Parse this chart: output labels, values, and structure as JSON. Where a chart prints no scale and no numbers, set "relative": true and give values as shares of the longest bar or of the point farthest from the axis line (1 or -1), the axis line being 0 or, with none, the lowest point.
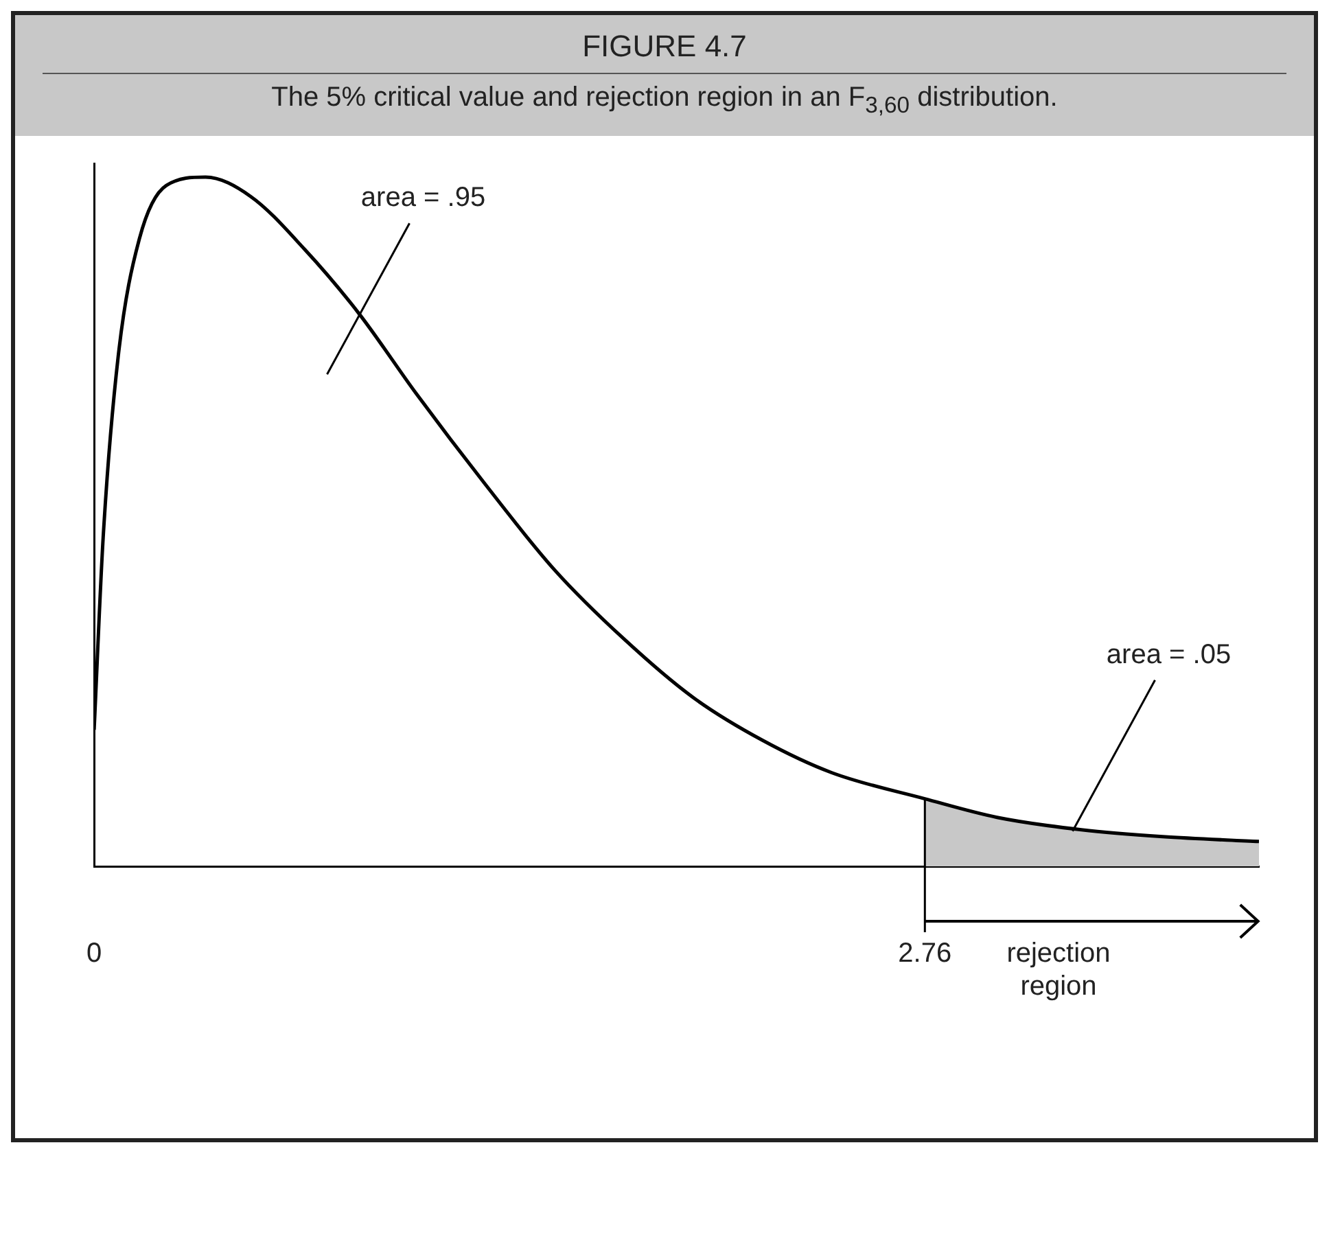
{
  "chart_data": {
    "type": "line",
    "title": "FIGURE 4.7",
    "subtitle": "The 5% critical value and rejection region in an F$_{3,60}$ distribution.",
    "relative": true,
    "marker": "none",
    "xlim": [
      0,
      3.87
    ],
    "xticks": [
      0,
      2.76
    ],
    "series": [
      {
        "type": "area",
        "color": "#c8c8c8",
        "x": [
          2.76,
          3.0,
          3.28,
          3.55,
          3.87
        ],
        "values": [
          0.098,
          0.071,
          0.053,
          0.043,
          0.036
        ]
      },
      {
        "type": "line",
        "color": "#000000",
        "x": [
          0,
          0.03,
          0.08,
          0.15,
          0.24,
          0.37,
          0.52,
          0.7,
          0.88,
          1.07,
          1.3,
          1.53,
          1.76,
          1.99,
          2.22,
          2.45,
          2.76,
          3.0,
          3.28,
          3.55,
          3.87
        ],
        "values": [
          0.198,
          0.477,
          0.74,
          0.91,
          0.988,
          1,
          0.972,
          0.895,
          0.802,
          0.686,
          0.554,
          0.43,
          0.33,
          0.245,
          0.183,
          0.136,
          0.098,
          0.071,
          0.053,
          0.043,
          0.036
        ]
      }
    ],
    "ref_lines": [
      {
        "axis": "x",
        "value": 2.76,
        "label": "rejection region"
      }
    ],
    "annotations": [
      "area = .95",
      "area = .05"
    ]
  }
}
